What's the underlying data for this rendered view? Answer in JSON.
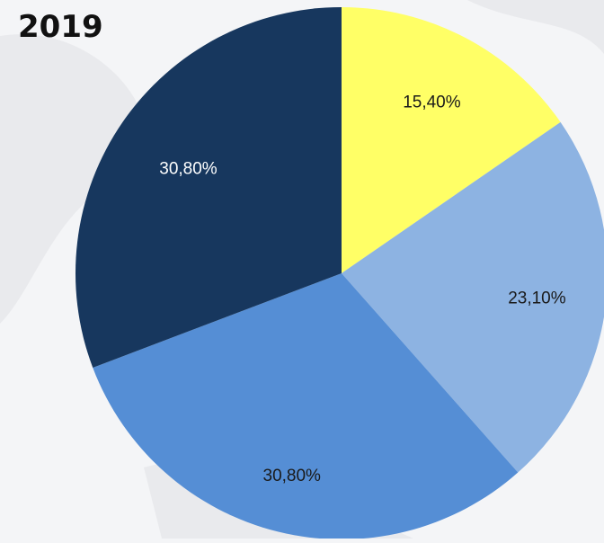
{
  "chart_data": {
    "type": "pie",
    "title": "2019",
    "slices": [
      {
        "value": 15.4,
        "label": "15,40%",
        "color": "#ffff66",
        "label_color": "#1a1a1a"
      },
      {
        "value": 23.1,
        "label": "23,10%",
        "color": "#8db3e2",
        "label_color": "#1a1a1a"
      },
      {
        "value": 30.8,
        "label": "30,80%",
        "color": "#558ed5",
        "label_color": "#1a1a1a"
      },
      {
        "value": 30.8,
        "label": "30,80%",
        "color": "#17375e",
        "label_color": "#ffffff"
      }
    ],
    "start_angle": "12 o'clock",
    "direction": "clockwise",
    "legend": "none"
  }
}
